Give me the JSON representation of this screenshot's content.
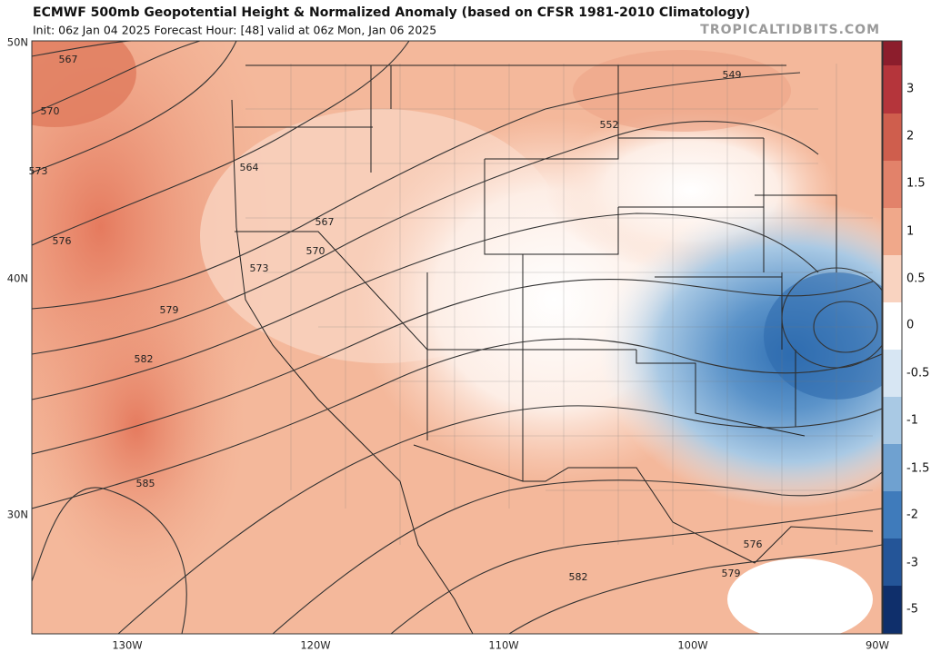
{
  "header": {
    "title": "ECMWF 500mb Geopotential Height & Normalized Anomaly (based on CFSR 1981-2010 Climatology)",
    "subtitle": "Init: 06z Jan 04 2025   Forecast Hour: [48]   valid at 06z Mon, Jan 06 2025",
    "watermark": "TROPICALTIDBITS.COM"
  },
  "map": {
    "latitude_labels": [
      "50N",
      "40N",
      "30N"
    ],
    "longitude_labels": [
      "130W",
      "120W",
      "110W",
      "100W",
      "90W"
    ],
    "contour_labels": [
      "567",
      "570",
      "573",
      "576",
      "579",
      "582",
      "585",
      "564",
      "567",
      "570",
      "573",
      "552",
      "549",
      "576",
      "579",
      "582"
    ]
  },
  "colorbar": {
    "labels": [
      "3",
      "2",
      "1.5",
      "1",
      "0.5",
      "0",
      "-0.5",
      "-1",
      "-1.5",
      "-2",
      "-3",
      "-5"
    ]
  }
}
